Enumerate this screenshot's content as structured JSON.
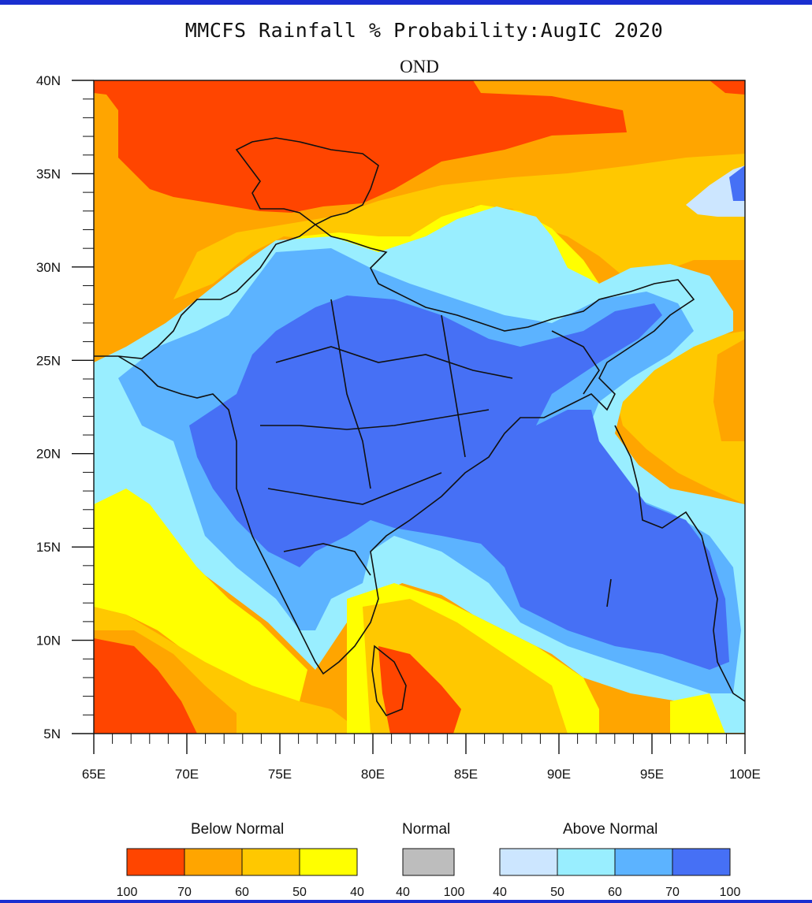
{
  "title": "MMCFS Rainfall % Probability:AugIC 2020",
  "subtitle": "OND",
  "colors": {
    "frame_bar": "#1a2fd0",
    "below_100_70": "#ff4500",
    "below_70_60": "#ffa500",
    "below_60_50": "#ffc800",
    "below_50_40": "#ffff00",
    "normal": "#bdbdbd",
    "above_40_50": "#cce6ff",
    "above_50_60": "#99eeff",
    "above_60_70": "#5cb3ff",
    "above_70_100": "#4670f5"
  },
  "map": {
    "lon_range": [
      65,
      100
    ],
    "lat_range": [
      5,
      40
    ],
    "x_ticks": [
      "65E",
      "70E",
      "75E",
      "80E",
      "85E",
      "90E",
      "95E",
      "100E"
    ],
    "y_ticks": [
      "5N",
      "10N",
      "15N",
      "20N",
      "25N",
      "30N",
      "35N",
      "40N"
    ]
  },
  "legend": {
    "below_label": "Below Normal",
    "normal_label": "Normal",
    "above_label": "Above Normal",
    "below_ticks": [
      "100",
      "70",
      "60",
      "50",
      "40"
    ],
    "normal_ticks": [
      "40",
      "100"
    ],
    "above_ticks": [
      "40",
      "50",
      "60",
      "70",
      "100"
    ]
  }
}
